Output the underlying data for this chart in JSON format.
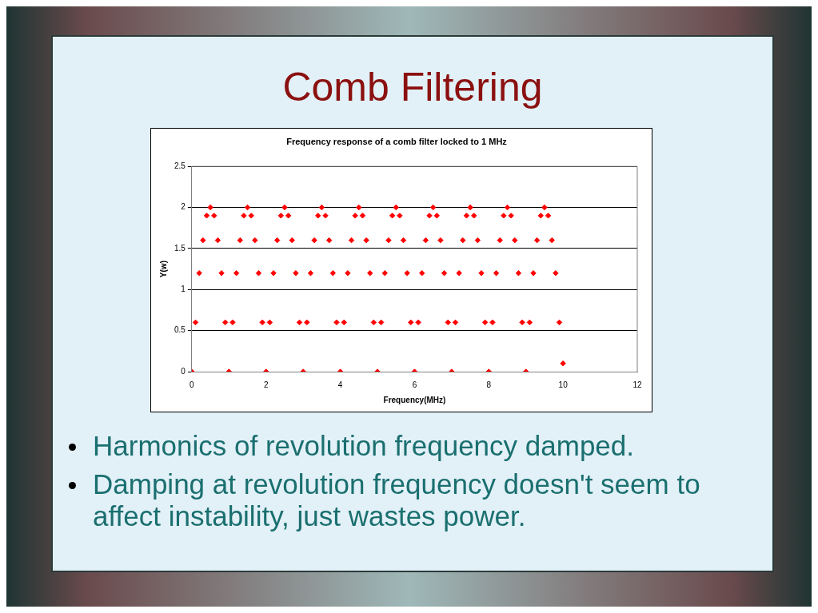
{
  "chart_data": {
    "type": "scatter",
    "title": "Comb Filtering",
    "subtitle": "Frequency response of a comb filter locked to 1 MHz",
    "xlabel": "Frequency(MHz)",
    "ylabel": "Y(w)",
    "x": [
      0,
      0.1,
      0.2,
      0.3,
      0.4,
      0.5,
      0.6,
      0.7,
      0.8,
      0.9,
      1,
      1.1,
      1.2,
      1.3,
      1.4,
      1.5,
      1.6,
      1.7,
      1.8,
      1.9,
      2,
      2.1,
      2.2,
      2.3,
      2.4,
      2.5,
      2.6,
      2.7,
      2.8,
      2.9,
      3,
      3.1,
      3.2,
      3.3,
      3.4,
      3.5,
      3.6,
      3.7,
      3.8,
      3.9,
      4,
      4.1,
      4.2,
      4.3,
      4.4,
      4.5,
      4.6,
      4.7,
      4.8,
      4.9,
      5,
      5.1,
      5.2,
      5.3,
      5.4,
      5.5,
      5.6,
      5.7,
      5.8,
      5.9,
      6,
      6.1,
      6.2,
      6.3,
      6.4,
      6.5,
      6.6,
      6.7,
      6.8,
      6.9,
      7,
      7.1,
      7.2,
      7.3,
      7.4,
      7.5,
      7.6,
      7.7,
      7.8,
      7.9,
      8,
      8.1,
      8.2,
      8.3,
      8.4,
      8.5,
      8.6,
      8.7,
      8.8,
      8.9,
      9,
      9.1,
      9.2,
      9.3,
      9.4,
      9.5,
      9.6,
      9.7,
      9.8,
      9.9,
      10
    ],
    "series": [
      {
        "color": "#ff0000",
        "values": [
          0,
          0.6,
          1.2,
          1.6,
          1.9,
          2,
          1.9,
          1.6,
          1.2,
          0.6,
          0,
          0.6,
          1.2,
          1.6,
          1.9,
          2,
          1.9,
          1.6,
          1.2,
          0.6,
          0,
          0.6,
          1.2,
          1.6,
          1.9,
          2,
          1.9,
          1.6,
          1.2,
          0.6,
          0,
          0.6,
          1.2,
          1.6,
          1.9,
          2,
          1.9,
          1.6,
          1.2,
          0.6,
          0,
          0.6,
          1.2,
          1.6,
          1.9,
          2,
          1.9,
          1.6,
          1.2,
          0.6,
          0,
          0.6,
          1.2,
          1.6,
          1.9,
          2,
          1.9,
          1.6,
          1.2,
          0.6,
          0,
          0.6,
          1.2,
          1.6,
          1.9,
          2,
          1.9,
          1.6,
          1.2,
          0.6,
          0,
          0.6,
          1.2,
          1.6,
          1.9,
          2,
          1.9,
          1.6,
          1.2,
          0.6,
          0,
          0.6,
          1.2,
          1.6,
          1.9,
          2,
          1.9,
          1.6,
          1.2,
          0.6,
          0,
          0.6,
          1.2,
          1.6,
          1.9,
          2,
          1.9,
          1.6,
          1.2,
          0.6,
          0.1
        ]
      }
    ],
    "xlim": [
      0,
      12
    ],
    "xticks": [
      0,
      2,
      4,
      6,
      8,
      10,
      12
    ],
    "ylim": [
      0,
      2.5
    ],
    "yticks": [
      0,
      0.5,
      1,
      1.5,
      2,
      2.5
    ],
    "grid": "y",
    "marker": "diamond",
    "legend": false,
    "annotations": [
      "Harmonics of revolution frequency damped.",
      "Damping at revolution frequency doesn't seem to affect instability, just wastes power."
    ]
  }
}
